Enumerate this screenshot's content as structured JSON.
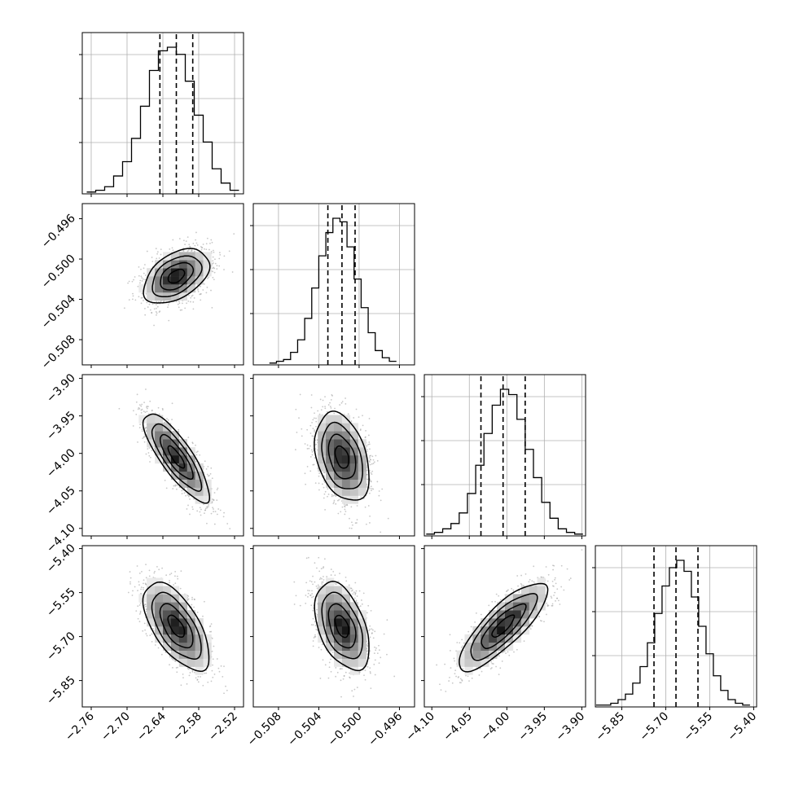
{
  "chart_data": {
    "type": "corner",
    "colors": {
      "background": "#ffffff",
      "hist_line": "#000000",
      "quantile_line": "#000000",
      "grid": "#b0b0b0",
      "scatter": "#9a9a9a",
      "contour": "#000000",
      "density_low": "#ececec",
      "density_high": "#0a0a0a"
    },
    "grid": true,
    "quantile_line_style": "dashed",
    "parameters": [
      {
        "range": [
          -2.775,
          -2.505
        ],
        "ticks": [
          -2.76,
          -2.7,
          -2.64,
          -2.58,
          -2.52
        ],
        "tick_labels": [
          "−2.76",
          "−2.70",
          "−2.64",
          "−2.58",
          "−2.52"
        ],
        "quantiles": [
          -2.645,
          -2.6175,
          -2.59
        ],
        "histogram_edges": [
          -2.7675,
          -2.7525,
          -2.7375,
          -2.7225,
          -2.7075,
          -2.6925,
          -2.6775,
          -2.6625,
          -2.6475,
          -2.6325,
          -2.6175,
          -2.6025,
          -2.5875,
          -2.5725,
          -2.5575,
          -2.5425,
          -2.5275,
          -2.5125
        ],
        "histogram_counts": [
          1,
          2,
          4,
          10,
          18,
          31,
          49,
          69,
          80,
          82,
          78,
          63,
          44,
          29,
          14,
          6,
          2
        ]
      },
      {
        "range": [
          -0.5105,
          -0.4945
        ],
        "ticks": [
          -0.508,
          -0.504,
          -0.5,
          -0.496
        ],
        "tick_labels": [
          "−0.508",
          "−0.504",
          "−0.500",
          "−0.496"
        ],
        "quantiles": [
          -0.5031,
          -0.5017,
          -0.5004
        ],
        "histogram_edges": [
          -0.5089,
          -0.5082,
          -0.5075,
          -0.5068,
          -0.5061,
          -0.5054,
          -0.5047,
          -0.504,
          -0.5033,
          -0.5026,
          -0.5019,
          -0.5012,
          -0.5005,
          -0.4998,
          -0.4991,
          -0.4984,
          -0.4977,
          -0.497,
          -0.4963
        ],
        "histogram_counts": [
          1,
          2,
          3,
          7,
          14,
          26,
          43,
          61,
          74,
          82,
          80,
          66,
          48,
          32,
          18,
          8,
          4,
          2
        ]
      },
      {
        "range": [
          -4.11,
          -3.895
        ],
        "ticks": [
          -4.1,
          -4.05,
          -4.0,
          -3.95,
          -3.9
        ],
        "tick_labels": [
          "−4.10",
          "−4.05",
          "−4.00",
          "−3.95",
          "−3.90"
        ],
        "quantiles": [
          -4.0345,
          -4.005,
          -3.9755
        ],
        "histogram_edges": [
          -4.1075,
          -4.0965,
          -4.0855,
          -4.0745,
          -4.0635,
          -4.0525,
          -4.0415,
          -4.0305,
          -4.0195,
          -4.0085,
          -3.9975,
          -3.9865,
          -3.9755,
          -3.9645,
          -3.9535,
          -3.9425,
          -3.9315,
          -3.9205,
          -3.9095,
          -3.8985
        ],
        "histogram_counts": [
          1,
          2,
          4,
          7,
          13,
          24,
          40,
          58,
          74,
          83,
          80,
          66,
          49,
          33,
          19,
          10,
          4,
          2,
          1
        ]
      },
      {
        "range": [
          -5.94,
          -5.39
        ],
        "ticks": [
          -5.85,
          -5.7,
          -5.55,
          -5.4
        ],
        "tick_labels": [
          "−5.85",
          "−5.70",
          "−5.55",
          "−5.40"
        ],
        "quantiles": [
          -5.74,
          -5.665,
          -5.59
        ],
        "histogram_edges": [
          -5.9375,
          -5.9125,
          -5.8875,
          -5.8625,
          -5.8375,
          -5.8125,
          -5.7875,
          -5.7625,
          -5.7375,
          -5.7125,
          -5.6875,
          -5.6625,
          -5.6375,
          -5.6125,
          -5.5875,
          -5.5625,
          -5.5375,
          -5.5125,
          -5.4875,
          -5.4625,
          -5.4375,
          -5.4125
        ],
        "histogram_counts": [
          1,
          1,
          2,
          4,
          7,
          13,
          22,
          35,
          51,
          66,
          76,
          80,
          74,
          60,
          44,
          29,
          17,
          9,
          4,
          2,
          1
        ]
      }
    ],
    "pair_correlations": {
      "1-0": 0.45,
      "2-0": -0.82,
      "2-1": -0.35,
      "3-0": -0.62,
      "3-1": -0.45,
      "3-2": 0.82
    },
    "contour_levels_sigma": [
      0.5,
      1.0,
      1.5,
      2.0
    ]
  }
}
